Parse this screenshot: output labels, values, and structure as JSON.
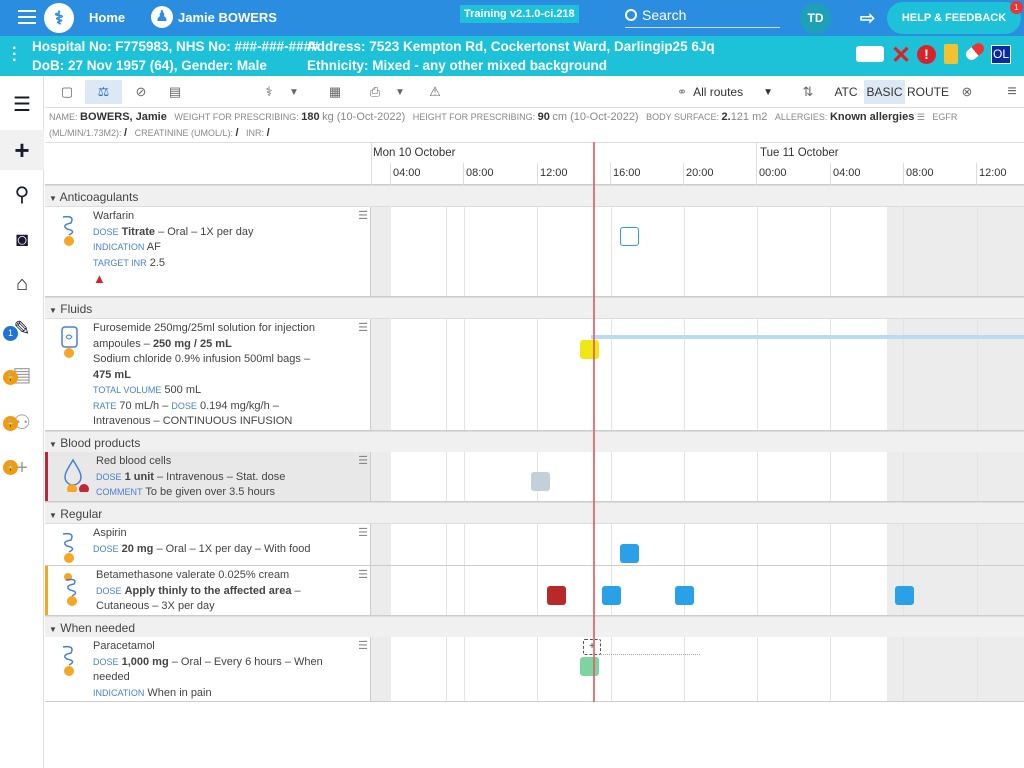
{
  "topbar": {
    "home": "Home",
    "user": "Jamie BOWERS",
    "version": "Training v2.1.0-ci.218",
    "search": "Search",
    "initials": "TD",
    "help": "HELP & FEEDBACK",
    "help_badge": "1"
  },
  "patient": {
    "hospital_no": "Hospital No: F775983, NHS No: ###-###-####",
    "dob": "DoB: 27 Nov 1957 (64), Gender: Male",
    "address": "Address: 7523 Kempton Rd, Cockertonst Ward, Darlingip25 6Jq",
    "ethnicity": "Ethnicity: Mixed - any other mixed background",
    "ol_badge": "OL"
  },
  "sidebar": {
    "notif_count": "1"
  },
  "toolbar": {
    "routes": "All routes",
    "atc": "ATC",
    "basic": "BASIC",
    "route": "ROUTE"
  },
  "info": {
    "name_label": "NAME:",
    "name": "BOWERS, Jamie",
    "weight_label": "WEIGHT FOR PRESCRIBING:",
    "weight": "180",
    "weight_rest": "kg (10-Oct-2022)",
    "height_label": "HEIGHT FOR PRESCRIBING:",
    "height": "90",
    "height_rest": "cm (10-Oct-2022)",
    "bs_label": "BODY SURFACE:",
    "bs": "2.",
    "bs_rest": "121 m2",
    "allergies_label": "ALLERGIES:",
    "allergies": "Known allergies",
    "egfr_label": "EGFR",
    "egfr2": "(ML/MIN/1.73M2):",
    "egfr_val": "/",
    "creat_label": "CREATININE (UMOL/L):",
    "creat_val": "/",
    "inr_label": "INR:",
    "inr_val": "/"
  },
  "timeline": {
    "day1": "Mon 10 October",
    "day2": "Tue 11 October",
    "hours": [
      "04:00",
      "08:00",
      "12:00",
      "16:00",
      "20:00",
      "00:00",
      "04:00",
      "08:00",
      "12:00"
    ]
  },
  "sections": {
    "anticoagulants": "Anticoagulants",
    "fluids": "Fluids",
    "blood": "Blood products",
    "regular": "Regular",
    "when_needed": "When needed"
  },
  "drugs": {
    "warfarin": {
      "name": "Warfarin",
      "dose_label": "DOSE",
      "dose": "Titrate",
      "dose_rest": "– Oral – 1X per day",
      "ind_label": "INDICATION",
      "ind": "AF",
      "inr_label": "TARGET INR",
      "inr": "2.5"
    },
    "furosemide": {
      "name1": "Furosemide 250mg/25ml solution for injection",
      "name2": "ampoules –",
      "amount": "250 mg / 25 mL",
      "line3": "Sodium chloride 0.9% infusion 500ml bags –",
      "amount2": "475 mL",
      "tv_label": "TOTAL VOLUME",
      "tv": "500 mL",
      "rate_label": "RATE",
      "rate": "70 mL/h –",
      "dose_label": "DOSE",
      "dose": "0.194 mg/kg/h –",
      "route": "Intravenous – CONTINUOUS INFUSION"
    },
    "rbc": {
      "name": "Red blood cells",
      "dose_label": "DOSE",
      "dose": "1 unit",
      "dose_rest": "– Intravenous – Stat. dose",
      "comment_label": "COMMENT",
      "comment": "To be given over 3.5 hours"
    },
    "aspirin": {
      "name": "Aspirin",
      "dose_label": "DOSE",
      "dose": "20 mg",
      "dose_rest": "– Oral – 1X per day – With food"
    },
    "beta": {
      "name": "Betamethasone valerate 0.025% cream",
      "dose_label": "DOSE",
      "dose": "Apply thinly to the affected area",
      "dose_rest": "–",
      "route": "Cutaneous – 3X per day"
    },
    "paracetamol": {
      "name": "Paracetamol",
      "dose_label": "DOSE",
      "dose": "1,000 mg",
      "dose_rest": "– Oral – Every 6 hours – When",
      "dose_rest2": "needed",
      "ind_label": "INDICATION",
      "ind": "When in pain"
    }
  },
  "colors": {
    "topbar": "#2a8de0",
    "patient": "#1ec2d8",
    "scheduled": "#29a0e8",
    "missed": "#b82a2a",
    "now": "#e06060",
    "yellow": "#f0e816",
    "green": "#7ed4a0",
    "grey": "#c3cfd9"
  }
}
